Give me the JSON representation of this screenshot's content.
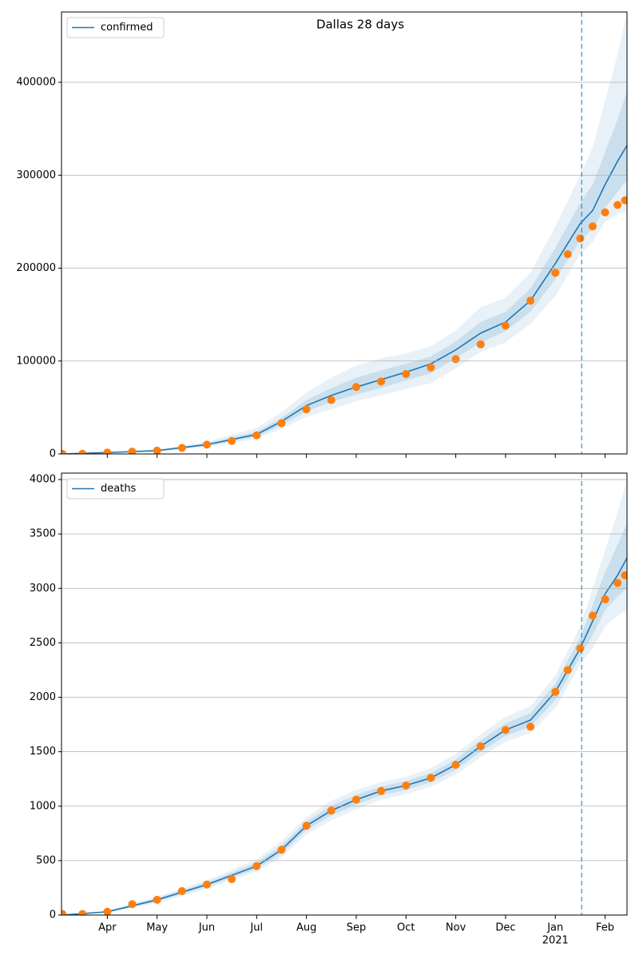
{
  "chart_data": [
    {
      "type": "line",
      "title": "Dallas 28 days",
      "xlim": [
        3.08,
        14.44
      ],
      "xticks": [
        4,
        5,
        6,
        7,
        8,
        9,
        10,
        11,
        12,
        13,
        14
      ],
      "ylim": [
        0,
        475700
      ],
      "yticks": [
        0,
        100000,
        200000,
        300000,
        400000
      ],
      "grid": true,
      "legend": "upper left",
      "vline": 13.53,
      "vline_color": "#1f77b4",
      "x": [
        3.1,
        4,
        5,
        6,
        7,
        7.5,
        8,
        8.5,
        9,
        9.5,
        10,
        10.5,
        11,
        11.5,
        12,
        12.5,
        13,
        13.5,
        13.75,
        14,
        14.25,
        14.44
      ],
      "series": [
        {
          "name": "confirmed",
          "color": "#1f77b4",
          "values": [
            0,
            1500,
            3500,
            10000,
            21000,
            35000,
            52000,
            63000,
            72000,
            80000,
            88000,
            97000,
            112000,
            130000,
            142000,
            165000,
            205000,
            248000,
            262000,
            290000,
            315000,
            332000
          ]
        }
      ],
      "bands": [
        {
          "color": "#1f77b4",
          "opacity": 0.1,
          "lower": [
            0,
            1000,
            2500,
            7500,
            16000,
            27000,
            40000,
            48000,
            57000,
            63000,
            70000,
            76000,
            92000,
            110000,
            120000,
            140000,
            170000,
            215000,
            228000,
            250000,
            258000,
            262000
          ],
          "upper": [
            0,
            2000,
            5000,
            13000,
            28000,
            45000,
            66000,
            82000,
            95000,
            103000,
            108000,
            116000,
            133000,
            158000,
            168000,
            195000,
            245000,
            300000,
            330000,
            380000,
            430000,
            475000
          ]
        },
        {
          "color": "#1f77b4",
          "opacity": 0.15,
          "lower": [
            0,
            1300,
            3000,
            8700,
            18500,
            31000,
            46000,
            56000,
            64000,
            71000,
            79000,
            87000,
            103000,
            120000,
            132000,
            153000,
            188000,
            230000,
            242000,
            265000,
            282000,
            295000
          ],
          "upper": [
            0,
            1700,
            4200,
            11500,
            24000,
            39000,
            58000,
            71000,
            82000,
            90000,
            97000,
            105000,
            121000,
            142000,
            153000,
            178000,
            222000,
            270000,
            290000,
            325000,
            360000,
            390000
          ]
        }
      ],
      "observed": {
        "color": "#ff7f0e",
        "x": [
          3.1,
          3.5,
          4,
          4.5,
          5,
          5.5,
          6,
          6.5,
          7,
          7.5,
          8,
          8.5,
          9,
          9.5,
          10,
          10.5,
          11,
          11.5,
          12,
          12.5,
          13,
          13.25,
          13.5,
          13.75,
          14,
          14.25,
          14.4
        ],
        "values": [
          0,
          200,
          1500,
          2500,
          3500,
          6500,
          10000,
          14000,
          20000,
          33000,
          48000,
          58000,
          72000,
          78000,
          86000,
          93000,
          102000,
          118000,
          138000,
          165000,
          195000,
          215000,
          232000,
          245000,
          260000,
          268000,
          273000
        ]
      }
    },
    {
      "type": "line",
      "xlim": [
        3.08,
        14.44
      ],
      "xticks": [
        {
          "value": 4,
          "label": "Apr"
        },
        {
          "value": 5,
          "label": "May"
        },
        {
          "value": 6,
          "label": "Jun"
        },
        {
          "value": 7,
          "label": "Jul"
        },
        {
          "value": 8,
          "label": "Aug"
        },
        {
          "value": 9,
          "label": "Sep"
        },
        {
          "value": 10,
          "label": "Oct"
        },
        {
          "value": 11,
          "label": "Nov"
        },
        {
          "value": 12,
          "label": "Dec"
        },
        {
          "value": 13,
          "label": "Jan",
          "sublabel": "2021"
        },
        {
          "value": 14,
          "label": "Feb"
        }
      ],
      "ylim": [
        0,
        4059
      ],
      "yticks": [
        0,
        500,
        1000,
        1500,
        2000,
        2500,
        3000,
        3500,
        4000
      ],
      "grid": true,
      "legend": "upper left",
      "vline": 13.53,
      "vline_color": "#1f77b4",
      "x": [
        3.1,
        4,
        5,
        6,
        7,
        7.5,
        8,
        8.5,
        9,
        9.5,
        10,
        10.5,
        11,
        11.5,
        12,
        12.5,
        13,
        13.5,
        13.75,
        14,
        14.25,
        14.44
      ],
      "series": [
        {
          "name": "deaths",
          "color": "#1f77b4",
          "values": [
            0,
            30,
            140,
            280,
            450,
            600,
            820,
            960,
            1060,
            1140,
            1190,
            1260,
            1380,
            1550,
            1700,
            1790,
            2050,
            2450,
            2700,
            2950,
            3120,
            3280
          ]
        }
      ],
      "bands": [
        {
          "color": "#1f77b4",
          "opacity": 0.1,
          "lower": [
            0,
            20,
            110,
            240,
            400,
            530,
            740,
            870,
            970,
            1060,
            1110,
            1180,
            1290,
            1450,
            1590,
            1670,
            1900,
            2300,
            2450,
            2650,
            2750,
            2800
          ],
          "upper": [
            0,
            40,
            170,
            320,
            510,
            680,
            900,
            1050,
            1150,
            1220,
            1270,
            1350,
            1480,
            1660,
            1820,
            1920,
            2200,
            2650,
            3000,
            3350,
            3700,
            4000
          ]
        },
        {
          "color": "#1f77b4",
          "opacity": 0.15,
          "lower": [
            0,
            25,
            125,
            260,
            425,
            565,
            780,
            915,
            1015,
            1100,
            1150,
            1220,
            1335,
            1500,
            1645,
            1730,
            1975,
            2375,
            2570,
            2800,
            2930,
            3000
          ],
          "upper": [
            0,
            35,
            155,
            300,
            480,
            640,
            860,
            1005,
            1105,
            1180,
            1230,
            1305,
            1430,
            1605,
            1760,
            1855,
            2125,
            2550,
            2850,
            3150,
            3400,
            3600
          ]
        }
      ],
      "observed": {
        "color": "#ff7f0e",
        "x": [
          3.1,
          3.5,
          4,
          4.5,
          5,
          5.5,
          6,
          6.5,
          7,
          7.5,
          8,
          8.5,
          9,
          9.5,
          10,
          10.5,
          11,
          11.5,
          12,
          12.5,
          13,
          13.25,
          13.5,
          13.75,
          14,
          14.25,
          14.4
        ],
        "values": [
          10,
          10,
          30,
          100,
          140,
          220,
          280,
          330,
          450,
          600,
          820,
          960,
          1060,
          1140,
          1190,
          1260,
          1380,
          1550,
          1700,
          1730,
          2050,
          2250,
          2450,
          2750,
          2900,
          3050,
          3120
        ]
      }
    }
  ]
}
